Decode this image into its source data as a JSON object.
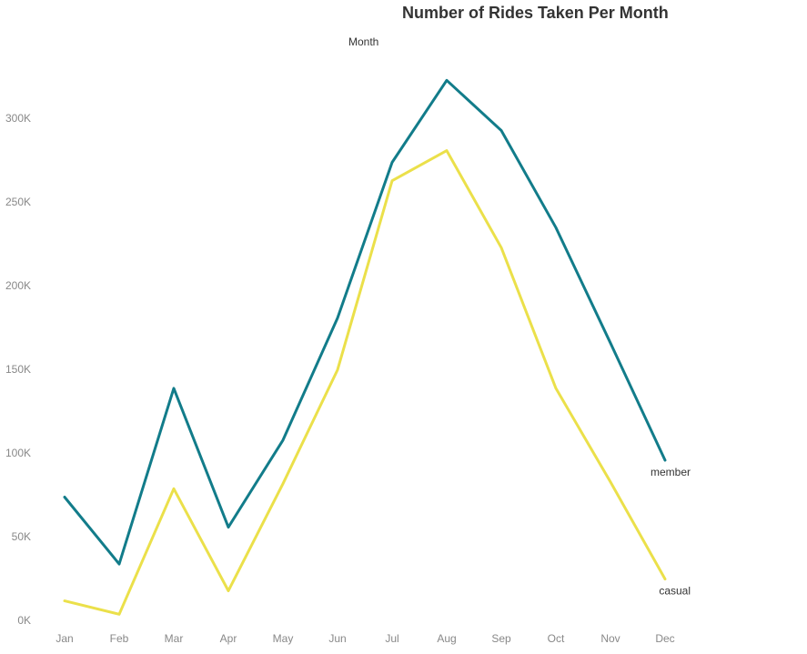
{
  "chart_data": {
    "type": "line",
    "title": "Number of Rides Taken Per Month",
    "x_header": "Month",
    "categories": [
      "Jan",
      "Feb",
      "Mar",
      "Apr",
      "May",
      "Jun",
      "Jul",
      "Aug",
      "Sep",
      "Oct",
      "Nov",
      "Dec"
    ],
    "ylim": [
      0,
      340000
    ],
    "yticks": [
      {
        "value": 0,
        "label": "0K"
      },
      {
        "value": 50000,
        "label": "50K"
      },
      {
        "value": 100000,
        "label": "100K"
      },
      {
        "value": 150000,
        "label": "150K"
      },
      {
        "value": 200000,
        "label": "200K"
      },
      {
        "value": 250000,
        "label": "250K"
      },
      {
        "value": 300000,
        "label": "300K"
      }
    ],
    "grid": false,
    "legend": "inline at line ends",
    "series": [
      {
        "name": "member",
        "color": "#127c8a",
        "values": [
          78000,
          38000,
          143000,
          60000,
          112000,
          185000,
          278000,
          327000,
          297000,
          239000,
          170000,
          100000
        ]
      },
      {
        "name": "casual",
        "color": "#ebe04a",
        "values": [
          16000,
          8000,
          83000,
          22000,
          86000,
          154000,
          267000,
          285000,
          227000,
          143000,
          87000,
          29000
        ]
      }
    ]
  }
}
